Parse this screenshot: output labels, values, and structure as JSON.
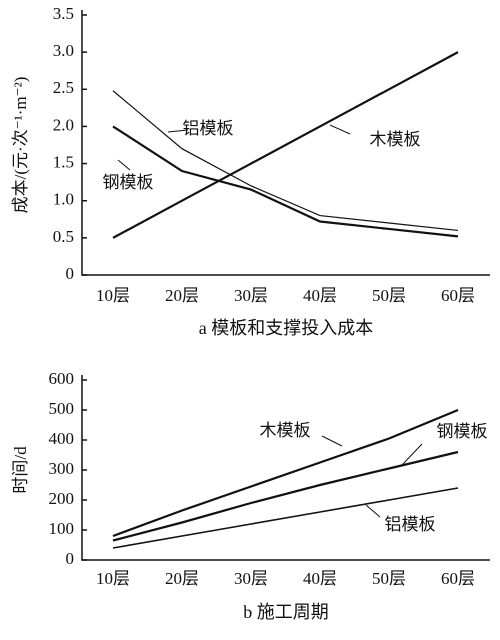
{
  "chart_data": [
    {
      "type": "line",
      "title": "a 模板和支撑投入成本",
      "ylabel": "成本/(元·次⁻¹·m⁻²)",
      "categories": [
        "10层",
        "20层",
        "30层",
        "40层",
        "50层",
        "60层"
      ],
      "series": [
        {
          "name": "铝模板",
          "color": "#111111",
          "values": [
            2.48,
            1.7,
            1.2,
            0.8,
            0.7,
            0.6
          ]
        },
        {
          "name": "钢模板",
          "color": "#111111",
          "values": [
            2.0,
            1.4,
            1.15,
            0.72,
            0.62,
            0.52
          ]
        },
        {
          "name": "木模板",
          "color": "#111111",
          "values": [
            0.5,
            1.0,
            1.5,
            2.0,
            2.5,
            3.0
          ]
        }
      ],
      "ylim": [
        0,
        3.5
      ],
      "yticks": [
        0,
        0.5,
        {
          "value": 1,
          "label": "1.0"
        },
        1.5,
        {
          "value": 2,
          "label": "2.0"
        },
        2.5,
        {
          "value": 3,
          "label": "3.0"
        },
        3.5
      ]
    },
    {
      "type": "line",
      "title": "b 施工周期",
      "ylabel": "时间/d",
      "categories": [
        "10层",
        "20层",
        "30层",
        "40层",
        "50层",
        "60层"
      ],
      "series": [
        {
          "name": "木模板",
          "color": "#111111",
          "values": [
            80,
            165,
            245,
            325,
            405,
            500
          ]
        },
        {
          "name": "钢模板",
          "color": "#111111",
          "values": [
            65,
            125,
            190,
            250,
            305,
            360
          ]
        },
        {
          "name": "铝模板",
          "color": "#111111",
          "values": [
            40,
            80,
            120,
            160,
            200,
            240
          ]
        }
      ],
      "ylim": [
        0,
        600
      ],
      "yticks": [
        0,
        100,
        200,
        300,
        400,
        500,
        600
      ]
    }
  ]
}
